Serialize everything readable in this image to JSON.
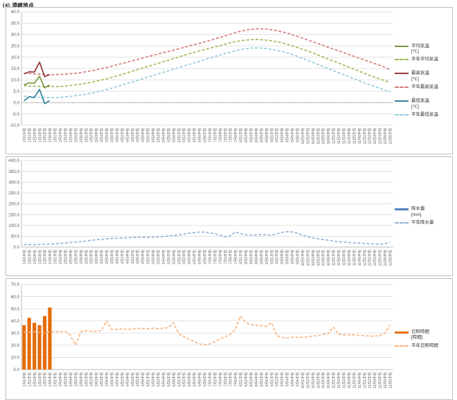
{
  "page_title": "(4) 須崎地点",
  "chart_data": {
    "shared_categories": [
      "1月1半旬",
      "1月2半旬",
      "1月3半旬",
      "1月4半旬",
      "1月5半旬",
      "1月6半旬",
      "2月1半旬",
      "2月2半旬",
      "2月3半旬",
      "2月4半旬",
      "2月5半旬",
      "2月6半旬",
      "3月1半旬",
      "3月2半旬",
      "3月3半旬",
      "3月4半旬",
      "3月5半旬",
      "3月6半旬",
      "4月1半旬",
      "4月2半旬",
      "4月3半旬",
      "4月4半旬",
      "4月5半旬",
      "4月6半旬",
      "5月1半旬",
      "5月2半旬",
      "5月3半旬",
      "5月4半旬",
      "5月5半旬",
      "5月6半旬",
      "6月1半旬",
      "6月2半旬",
      "6月3半旬",
      "6月4半旬",
      "6月5半旬",
      "6月6半旬",
      "7月1半旬",
      "7月2半旬",
      "7月3半旬",
      "7月4半旬",
      "7月5半旬",
      "7月6半旬",
      "8月1半旬",
      "8月2半旬",
      "8月3半旬",
      "8月4半旬",
      "8月5半旬",
      "8月6半旬",
      "9月1半旬",
      "9月2半旬",
      "9月3半旬",
      "9月4半旬",
      "9月5半旬",
      "9月6半旬",
      "10月1半旬",
      "10月2半旬",
      "10月3半旬",
      "10月4半旬",
      "10月5半旬",
      "10月6半旬",
      "11月1半旬",
      "11月2半旬",
      "11月3半旬",
      "11月4半旬",
      "11月5半旬",
      "11月6半旬",
      "12月1半旬",
      "12月2半旬",
      "12月3半旬",
      "12月4半旬",
      "12月5半旬",
      "12月6半旬"
    ],
    "charts": [
      {
        "name": "temperature",
        "type": "line",
        "ylim": [
          -10,
          40
        ],
        "ystep": 5,
        "y_ticks": [
          "40.0",
          "35.0",
          "30.0",
          "25.0",
          "20.0",
          "15.0",
          "10.0",
          "5.0",
          "0.0",
          "-5.0",
          "-10.0"
        ],
        "grid": true,
        "legend_position": "right",
        "series": [
          {
            "name": "avg-temp",
            "legend": [
              "平均気温",
              "[℃]"
            ],
            "kind": "line",
            "dashed": false,
            "color": "#77933C",
            "values": [
              7.8,
              8.7,
              8.5,
              11.6,
              6.5,
              7.7
            ]
          },
          {
            "name": "norm-avg-temp",
            "legend": [
              "平年平均気温"
            ],
            "kind": "line",
            "dashed": true,
            "color": "#9BBB59",
            "values": [
              7.5,
              7.3,
              7.2,
              7.1,
              7.0,
              7.0,
              7.0,
              7.1,
              7.3,
              7.5,
              7.8,
              8.1,
              8.5,
              8.9,
              9.4,
              9.9,
              10.5,
              11.1,
              11.7,
              12.4,
              13.1,
              13.8,
              14.5,
              15.2,
              15.9,
              16.6,
              17.3,
              18.0,
              18.7,
              19.4,
              20.1,
              20.8,
              21.5,
              22.1,
              22.7,
              23.3,
              23.9,
              24.5,
              25.1,
              25.7,
              26.3,
              26.8,
              27.2,
              27.5,
              27.7,
              27.8,
              27.7,
              27.5,
              27.2,
              26.8,
              26.3,
              25.7,
              25.0,
              24.3,
              23.5,
              22.7,
              21.9,
              21.0,
              20.1,
              19.2,
              18.3,
              17.4,
              16.5,
              15.6,
              14.7,
              13.8,
              12.9,
              12.0,
              11.2,
              10.4,
              9.6,
              8.9
            ]
          },
          {
            "name": "max-temp",
            "legend": [
              "最高気温",
              "[℃]"
            ],
            "kind": "line",
            "dashed": false,
            "color": "#953735",
            "values": [
              12.6,
              13.6,
              13.4,
              17.8,
              11.4,
              12.4
            ]
          },
          {
            "name": "norm-max-temp",
            "legend": [
              "平年最高気温"
            ],
            "kind": "line",
            "dashed": true,
            "color": "#D37D7B",
            "values": [
              13.0,
              12.8,
              12.6,
              12.5,
              12.4,
              12.3,
              12.3,
              12.4,
              12.5,
              12.7,
              12.9,
              13.2,
              13.6,
              14.0,
              14.4,
              14.9,
              15.4,
              16.0,
              16.6,
              17.2,
              17.8,
              18.4,
              19.0,
              19.6,
              20.2,
              20.8,
              21.4,
              22.0,
              22.5,
              23.1,
              23.7,
              24.3,
              24.9,
              25.5,
              26.1,
              26.7,
              27.3,
              28.0,
              28.7,
              29.4,
              30.1,
              30.8,
              31.4,
              31.9,
              32.3,
              32.5,
              32.5,
              32.4,
              32.1,
              31.7,
              31.2,
              30.6,
              29.9,
              29.2,
              28.4,
              27.6,
              26.8,
              26.0,
              25.2,
              24.4,
              23.6,
              22.8,
              22.0,
              21.2,
              20.4,
              19.6,
              18.8,
              18.0,
              17.2,
              16.4,
              15.6,
              14.4
            ]
          },
          {
            "name": "min-temp",
            "legend": [
              "最低気温",
              "[℃]"
            ],
            "kind": "line",
            "dashed": false,
            "color": "#31849B",
            "values": [
              0.8,
              2.6,
              2.2,
              5.8,
              -0.5,
              0.9
            ]
          },
          {
            "name": "norm-min-temp",
            "legend": [
              "平年最低気温"
            ],
            "kind": "line",
            "dashed": true,
            "color": "#92CDDC",
            "values": [
              2.8,
              2.6,
              2.4,
              2.3,
              2.2,
              2.2,
              2.2,
              2.3,
              2.5,
              2.7,
              3.0,
              3.3,
              3.7,
              4.1,
              4.6,
              5.1,
              5.7,
              6.3,
              7.0,
              7.7,
              8.4,
              9.1,
              9.8,
              10.5,
              11.2,
              11.9,
              12.6,
              13.3,
              14.0,
              14.7,
              15.4,
              16.1,
              16.8,
              17.5,
              18.2,
              18.9,
              19.6,
              20.3,
              21.0,
              21.6,
              22.2,
              22.8,
              23.3,
              23.7,
              24.0,
              24.1,
              24.0,
              23.8,
              23.4,
              23.0,
              22.5,
              21.9,
              21.2,
              20.4,
              19.5,
              18.6,
              17.7,
              16.8,
              15.9,
              15.0,
              14.1,
              13.2,
              12.3,
              11.4,
              10.5,
              9.6,
              8.7,
              7.9,
              7.1,
              6.3,
              5.5,
              4.6
            ]
          }
        ]
      },
      {
        "name": "precipitation",
        "type": "bar-line",
        "ylim": [
          0,
          400
        ],
        "ystep": 50,
        "y_ticks": [
          "400.0",
          "350.0",
          "300.0",
          "250.0",
          "200.0",
          "150.0",
          "100.0",
          "50.0",
          "0.0"
        ],
        "grid": true,
        "legend_position": "right",
        "series": [
          {
            "name": "precipitation",
            "legend": [
              "降水量",
              "[mm]"
            ],
            "kind": "bar",
            "dashed": false,
            "color": "#4F81BD",
            "values": [
              0,
              0,
              0,
              0,
              0,
              0
            ]
          },
          {
            "name": "norm-precipitation",
            "legend": [
              "平年降水量"
            ],
            "kind": "line",
            "dashed": true,
            "color": "#95B3D7",
            "values": [
              12,
              11,
              11,
              12,
              13,
              14,
              15,
              17,
              19,
              21,
              23,
              25,
              28,
              31,
              34,
              36,
              38,
              40,
              41,
              42,
              43,
              44,
              45,
              45,
              45,
              46,
              47,
              49,
              51,
              53,
              56,
              60,
              64,
              67,
              69,
              69,
              66,
              61,
              55,
              48,
              52,
              70,
              62,
              57,
              55,
              56,
              58,
              57,
              55,
              60,
              68,
              71,
              70,
              64,
              55,
              48,
              42,
              38,
              35,
              32,
              28,
              25,
              23,
              21,
              20,
              19,
              17,
              15,
              14,
              13,
              15,
              24
            ]
          }
        ]
      },
      {
        "name": "sunshine",
        "type": "bar-line",
        "ylim": [
          0,
          70
        ],
        "ystep": 10,
        "y_ticks": [
          "70.0",
          "60.0",
          "50.0",
          "40.0",
          "30.0",
          "20.0",
          "10.0",
          "0.0"
        ],
        "grid": true,
        "legend_position": "right",
        "series": [
          {
            "name": "sunshine-hours",
            "legend": [
              "日照時間",
              "[時間]"
            ],
            "kind": "bar",
            "dashed": false,
            "color": "#E46C0A",
            "values": [
              36.5,
              42.5,
              38.5,
              36.5,
              44,
              51
            ]
          },
          {
            "name": "norm-sunshine-hours",
            "legend": [
              "平年日照時間"
            ],
            "kind": "line",
            "dashed": true,
            "color": "#F9B37F",
            "values": [
              31,
              30.5,
              31,
              30.5,
              30,
              31,
              31.5,
              31,
              31.5,
              28,
              20,
              31,
              32,
              31.5,
              31.5,
              32,
              40,
              33,
              33,
              33.5,
              33,
              33.5,
              34,
              33.5,
              33.5,
              34,
              33.5,
              34,
              34.5,
              38.5,
              29.5,
              27,
              25,
              23,
              21,
              20.5,
              21,
              23,
              25,
              27,
              29,
              33,
              44,
              38.5,
              37,
              36.5,
              36,
              35.5,
              38.5,
              28,
              26.5,
              26,
              26.5,
              26.5,
              26.5,
              27,
              27.5,
              28,
              29,
              29.5,
              35,
              29,
              28.5,
              28.5,
              28.5,
              28,
              28,
              27.5,
              27.5,
              28,
              30,
              36.5
            ]
          }
        ]
      }
    ]
  }
}
